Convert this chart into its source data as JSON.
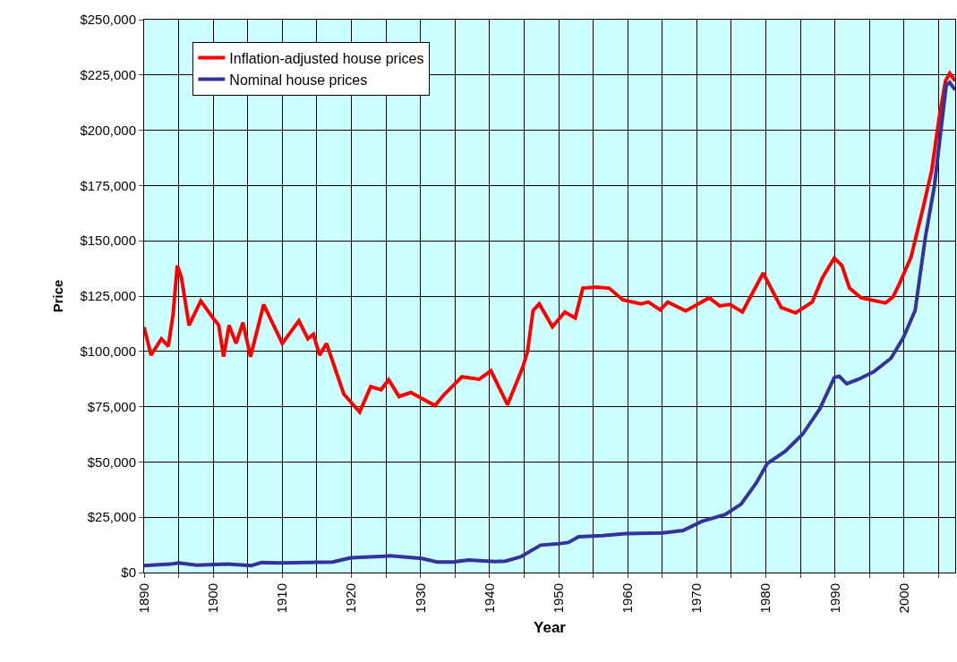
{
  "chart_data": {
    "type": "line",
    "xlabel": "Year",
    "ylabel": "Price",
    "xlim": [
      1890,
      2007.4
    ],
    "ylim": [
      0,
      250000
    ],
    "xticks": [
      1890,
      {
        "value": 1895,
        "label": null
      },
      1900,
      {
        "value": 1905,
        "label": null
      },
      1910,
      {
        "value": 1915,
        "label": null
      },
      1920,
      {
        "value": 1925,
        "label": null
      },
      1930,
      {
        "value": 1935,
        "label": null
      },
      1940,
      {
        "value": 1945,
        "label": null
      },
      1950,
      {
        "value": 1955,
        "label": null
      },
      1960,
      {
        "value": 1965,
        "label": null
      },
      1970,
      {
        "value": 1975,
        "label": null
      },
      1980,
      {
        "value": 1985,
        "label": null
      },
      1990,
      {
        "value": 1995,
        "label": null
      },
      2000,
      {
        "value": 2005,
        "label": null
      }
    ],
    "yticks": [
      {
        "value": 0,
        "label": "$0"
      },
      {
        "value": 25000,
        "label": "$25,000"
      },
      {
        "value": 50000,
        "label": "$50,000"
      },
      {
        "value": 75000,
        "label": "$75,000"
      },
      {
        "value": 100000,
        "label": "$100,000"
      },
      {
        "value": 125000,
        "label": "$125,000"
      },
      {
        "value": 150000,
        "label": "$150,000"
      },
      {
        "value": 175000,
        "label": "$175,000"
      },
      {
        "value": 200000,
        "label": "$200,000"
      },
      {
        "value": 225000,
        "label": "$225,000"
      },
      {
        "value": 250000,
        "label": "$250,000"
      }
    ],
    "grid": true,
    "legend": "top left",
    "marker": "none",
    "line_style": "solid",
    "series": [
      {
        "name": "Inflation-adjusted house prices",
        "color": "#ff0000",
        "x": [
          1890,
          1891,
          1892.5,
          1893.5,
          1894.2,
          1894.8,
          1895.4,
          1896.5,
          1898.2,
          1900,
          1900.8,
          1901.5,
          1902.3,
          1903.3,
          1904.3,
          1905.4,
          1907.3,
          1910,
          1912.4,
          1913.7,
          1914.5,
          1915.4,
          1916.4,
          1918.9,
          1921.2,
          1922.8,
          1924.3,
          1925.4,
          1926.9,
          1928.6,
          1932.1,
          1933.4,
          1936,
          1938.5,
          1940.2,
          1942.6,
          1944.8,
          1945.5,
          1946.3,
          1947.2,
          1949.1,
          1950.9,
          1952.4,
          1953.5,
          1955.4,
          1957.3,
          1959.3,
          1961.9,
          1963,
          1964.7,
          1965.8,
          1968.4,
          1971.8,
          1973.3,
          1974.8,
          1976.6,
          1979.6,
          1982.2,
          1984.3,
          1986.7,
          1988.2,
          1989.9,
          1991,
          1992.1,
          1993.8,
          1997.3,
          1998.4,
          1999.3,
          2001,
          2002.7,
          2004,
          2005.1,
          2006,
          2006.6,
          2007.4
        ],
        "values": [
          111000,
          98300,
          105700,
          102300,
          117000,
          138800,
          133400,
          111800,
          122800,
          115000,
          111800,
          97600,
          111800,
          103600,
          113000,
          97600,
          121200,
          103600,
          113800,
          105700,
          107700,
          98300,
          103600,
          80700,
          72600,
          84100,
          82700,
          87200,
          79600,
          81400,
          75500,
          80400,
          88500,
          87400,
          91200,
          75900,
          92800,
          100000,
          118500,
          121500,
          111100,
          117800,
          115100,
          128600,
          129000,
          128600,
          123300,
          121500,
          122300,
          118800,
          122300,
          118300,
          124200,
          120600,
          121200,
          117800,
          135400,
          119900,
          117400,
          122300,
          133400,
          142200,
          138800,
          128600,
          124200,
          121900,
          124600,
          130400,
          142600,
          164200,
          181800,
          206100,
          222300,
          225700,
          222300
        ]
      },
      {
        "name": "Nominal house prices",
        "color": "#333399",
        "x": [
          1890,
          1893.8,
          1895,
          1897.6,
          1902.1,
          1905.5,
          1907,
          1909.7,
          1917.3,
          1919.9,
          1924.8,
          1925.6,
          1930.2,
          1932.4,
          1934.7,
          1937,
          1940.8,
          1942.3,
          1944.5,
          1947.4,
          1949.7,
          1951.4,
          1952.9,
          1956.3,
          1959.7,
          1965,
          1968,
          1970.7,
          1974.1,
          1976.4,
          1978.6,
          1980.2,
          1982.8,
          1985.3,
          1987.8,
          1989.9,
          1990.6,
          1991.7,
          1993.4,
          1995.6,
          1998.1,
          1999.9,
          2001.6,
          2003.1,
          2004.4,
          2005.3,
          2006.1,
          2006.6,
          2007.4
        ],
        "values": [
          3100,
          3800,
          4300,
          3300,
          3800,
          3100,
          4500,
          4300,
          4800,
          6700,
          7400,
          7600,
          6400,
          4800,
          4800,
          5700,
          5000,
          5200,
          7100,
          12400,
          12900,
          13600,
          16200,
          16700,
          17600,
          17900,
          19000,
          23100,
          26200,
          30900,
          40500,
          49300,
          54800,
          62500,
          74000,
          88100,
          88800,
          85400,
          87400,
          90800,
          96900,
          106300,
          118500,
          152000,
          175000,
          199300,
          220300,
          221600,
          218200
        ]
      }
    ]
  }
}
